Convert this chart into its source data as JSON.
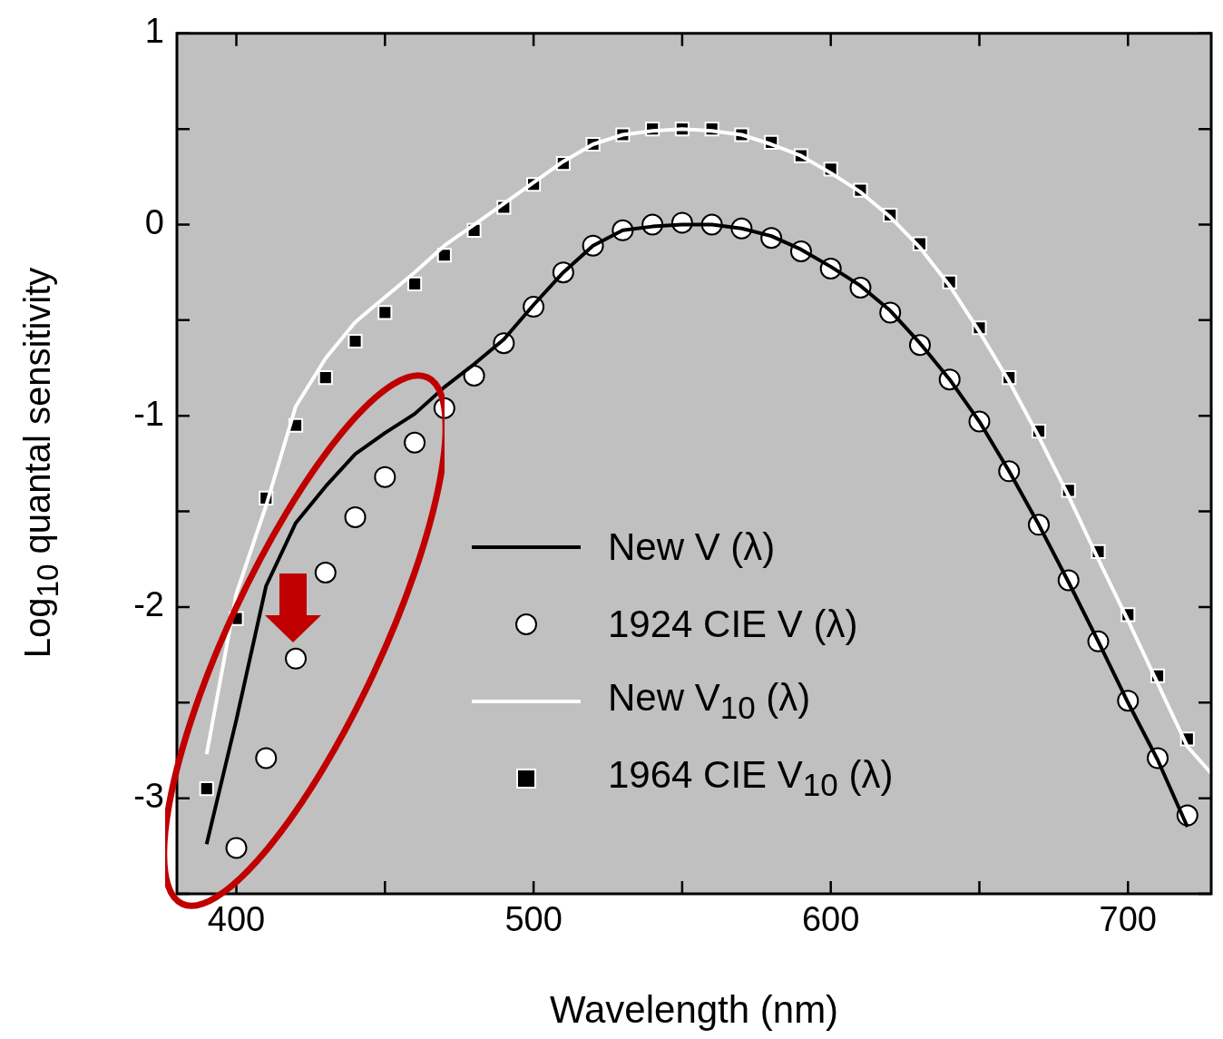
{
  "chart_data": {
    "type": "line",
    "xlabel": "Wavelength (nm)",
    "ylabel": "Log$_{10}$ quantal sensitivity",
    "xlim": [
      380,
      728
    ],
    "ylim": [
      -3.5,
      1
    ],
    "xticks": [
      400,
      {
        "value": 450,
        "label": null
      },
      500,
      {
        "value": 550,
        "label": null
      },
      600,
      {
        "value": 650,
        "label": null
      },
      700
    ],
    "yticks": [
      {
        "value": -3.5,
        "label": null
      },
      -3,
      {
        "value": -2.5,
        "label": null
      },
      -2,
      {
        "value": -1.5,
        "label": null
      },
      -1,
      {
        "value": -0.5,
        "label": null
      },
      0,
      {
        "value": 0.5,
        "label": null
      },
      1
    ],
    "grid": false,
    "legend": "right",
    "series": [
      {
        "name": "New V (λ)",
        "type": "line",
        "marker": "none",
        "color": "#000000",
        "x": [
          390,
          400,
          410,
          420,
          430,
          440,
          450,
          460,
          470,
          480,
          490,
          500,
          510,
          520,
          530,
          540,
          550,
          560,
          570,
          580,
          590,
          600,
          610,
          620,
          630,
          640,
          650,
          660,
          670,
          680,
          690,
          700,
          710,
          720
        ],
        "values": [
          -3.24,
          -2.59,
          -1.89,
          -1.56,
          -1.37,
          -1.2,
          -1.09,
          -0.99,
          -0.85,
          -0.73,
          -0.6,
          -0.42,
          -0.25,
          -0.11,
          -0.03,
          -0.01,
          0,
          0,
          -0.02,
          -0.06,
          -0.13,
          -0.22,
          -0.32,
          -0.45,
          -0.62,
          -0.81,
          -1.03,
          -1.29,
          -1.57,
          -1.87,
          -2.18,
          -2.5,
          -2.8,
          -3.15
        ]
      },
      {
        "name": "1924 CIE V (λ)",
        "type": "scatter",
        "marker": "circle",
        "color": "#ffffff",
        "x": [
          400,
          410,
          420,
          430,
          440,
          450,
          460,
          470,
          480,
          490,
          500,
          510,
          520,
          530,
          540,
          550,
          560,
          570,
          580,
          590,
          600,
          610,
          620,
          630,
          640,
          650,
          660,
          670,
          680,
          690,
          700,
          710,
          720
        ],
        "values": [
          -3.26,
          -2.79,
          -2.27,
          -1.82,
          -1.53,
          -1.32,
          -1.14,
          -0.96,
          -0.79,
          -0.62,
          -0.43,
          -0.25,
          -0.11,
          -0.03,
          0,
          0.01,
          0,
          -0.02,
          -0.07,
          -0.14,
          -0.23,
          -0.33,
          -0.46,
          -0.63,
          -0.81,
          -1.03,
          -1.29,
          -1.57,
          -1.86,
          -2.18,
          -2.49,
          -2.79,
          -3.09
        ]
      },
      {
        "name": "New V$_{10}$ (λ)",
        "type": "line",
        "marker": "none",
        "color": "#ffffff",
        "x": [
          390,
          400,
          410,
          420,
          430,
          440,
          450,
          460,
          470,
          480,
          490,
          500,
          510,
          520,
          530,
          540,
          550,
          560,
          570,
          580,
          590,
          600,
          610,
          620,
          630,
          640,
          650,
          660,
          670,
          680,
          690,
          700,
          710,
          720,
          728
        ],
        "values": [
          -2.77,
          -1.93,
          -1.47,
          -0.95,
          -0.7,
          -0.51,
          -0.38,
          -0.25,
          -0.11,
          0,
          0.11,
          0.22,
          0.33,
          0.42,
          0.47,
          0.49,
          0.5,
          0.49,
          0.47,
          0.42,
          0.36,
          0.27,
          0.17,
          0.04,
          -0.12,
          -0.32,
          -0.56,
          -0.82,
          -1.11,
          -1.42,
          -1.75,
          -2.07,
          -2.4,
          -2.73,
          -2.87
        ]
      },
      {
        "name": "1964 CIE V$_{10}$ (λ)",
        "type": "scatter",
        "marker": "square",
        "color": "#000000",
        "x": [
          390,
          400,
          410,
          420,
          430,
          440,
          450,
          460,
          470,
          480,
          490,
          500,
          510,
          520,
          530,
          540,
          550,
          560,
          570,
          580,
          590,
          600,
          610,
          620,
          630,
          640,
          650,
          660,
          670,
          680,
          690,
          700,
          710,
          720
        ],
        "values": [
          -2.95,
          -2.06,
          -1.43,
          -1.05,
          -0.8,
          -0.61,
          -0.46,
          -0.31,
          -0.16,
          -0.03,
          0.09,
          0.21,
          0.32,
          0.42,
          0.47,
          0.5,
          0.5,
          0.5,
          0.47,
          0.43,
          0.36,
          0.29,
          0.18,
          0.05,
          -0.1,
          -0.3,
          -0.54,
          -0.8,
          -1.08,
          -1.39,
          -1.71,
          -2.04,
          -2.36,
          -2.69
        ]
      }
    ]
  }
}
